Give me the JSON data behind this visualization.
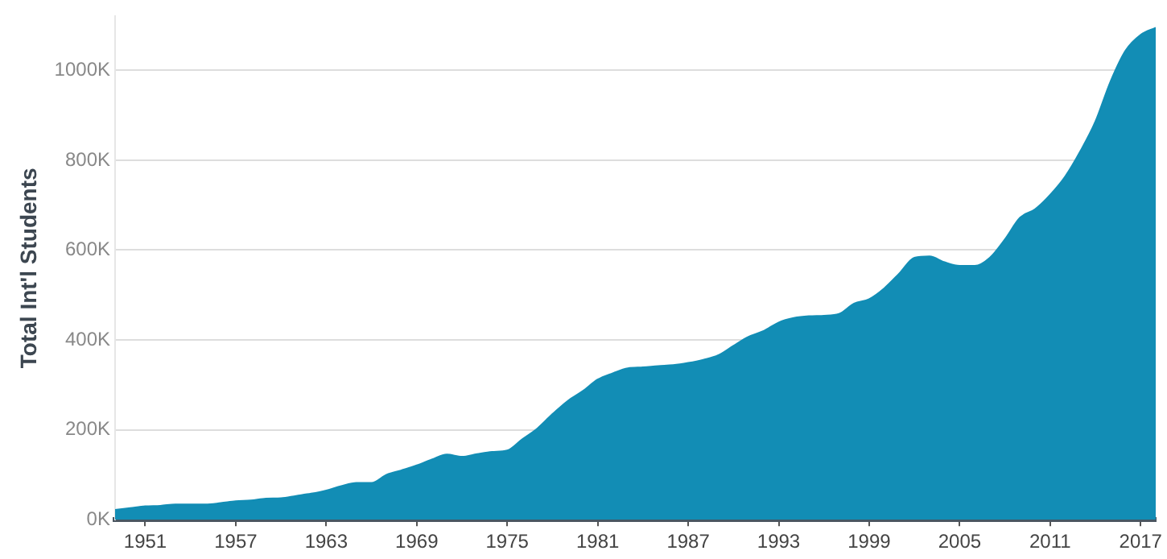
{
  "chart_data": {
    "type": "area",
    "ylabel": "Total Int'l Students",
    "x": [
      1949,
      1950,
      1951,
      1952,
      1953,
      1954,
      1955,
      1956,
      1957,
      1958,
      1959,
      1960,
      1961,
      1962,
      1963,
      1964,
      1965,
      1966,
      1967,
      1968,
      1969,
      1970,
      1971,
      1972,
      1973,
      1974,
      1975,
      1976,
      1977,
      1978,
      1979,
      1980,
      1981,
      1982,
      1983,
      1984,
      1985,
      1986,
      1987,
      1988,
      1989,
      1990,
      1991,
      1992,
      1993,
      1994,
      1995,
      1996,
      1997,
      1998,
      1999,
      2000,
      2001,
      2002,
      2003,
      2004,
      2005,
      2006,
      2007,
      2008,
      2009,
      2010,
      2011,
      2012,
      2013,
      2014,
      2015,
      2016,
      2017,
      2018
    ],
    "series": [
      {
        "color": "#128db5",
        "values": [
          22,
          26,
          30,
          31,
          34,
          34,
          34,
          37,
          41,
          43,
          47,
          48,
          53,
          58,
          65,
          75,
          82,
          82,
          100,
          110,
          121,
          134,
          145,
          140,
          146,
          151,
          154,
          179,
          203,
          235,
          264,
          286,
          312,
          326,
          337,
          339,
          342,
          344,
          349,
          356,
          366,
          387,
          407,
          420,
          439,
          449,
          453,
          454,
          458,
          481,
          491,
          515,
          548,
          583,
          586,
          573,
          565,
          565,
          583,
          624,
          672,
          691,
          723,
          764,
          820,
          886,
          975,
          1044,
          1079,
          1095
        ]
      }
    ],
    "xlim": [
      1949,
      2018
    ],
    "xticks": [
      1951,
      1957,
      1963,
      1969,
      1975,
      1981,
      1987,
      1993,
      1999,
      2005,
      2011,
      2017
    ],
    "ylim": [
      0,
      1120
    ],
    "yticks": [
      {
        "value": 0,
        "label": "0K"
      },
      {
        "value": 200,
        "label": "200K"
      },
      {
        "value": 400,
        "label": "400K"
      },
      {
        "value": 600,
        "label": "600K"
      },
      {
        "value": 800,
        "label": "800K"
      },
      {
        "value": 1000,
        "label": "1000K"
      }
    ],
    "grid": "y",
    "legend": false
  }
}
